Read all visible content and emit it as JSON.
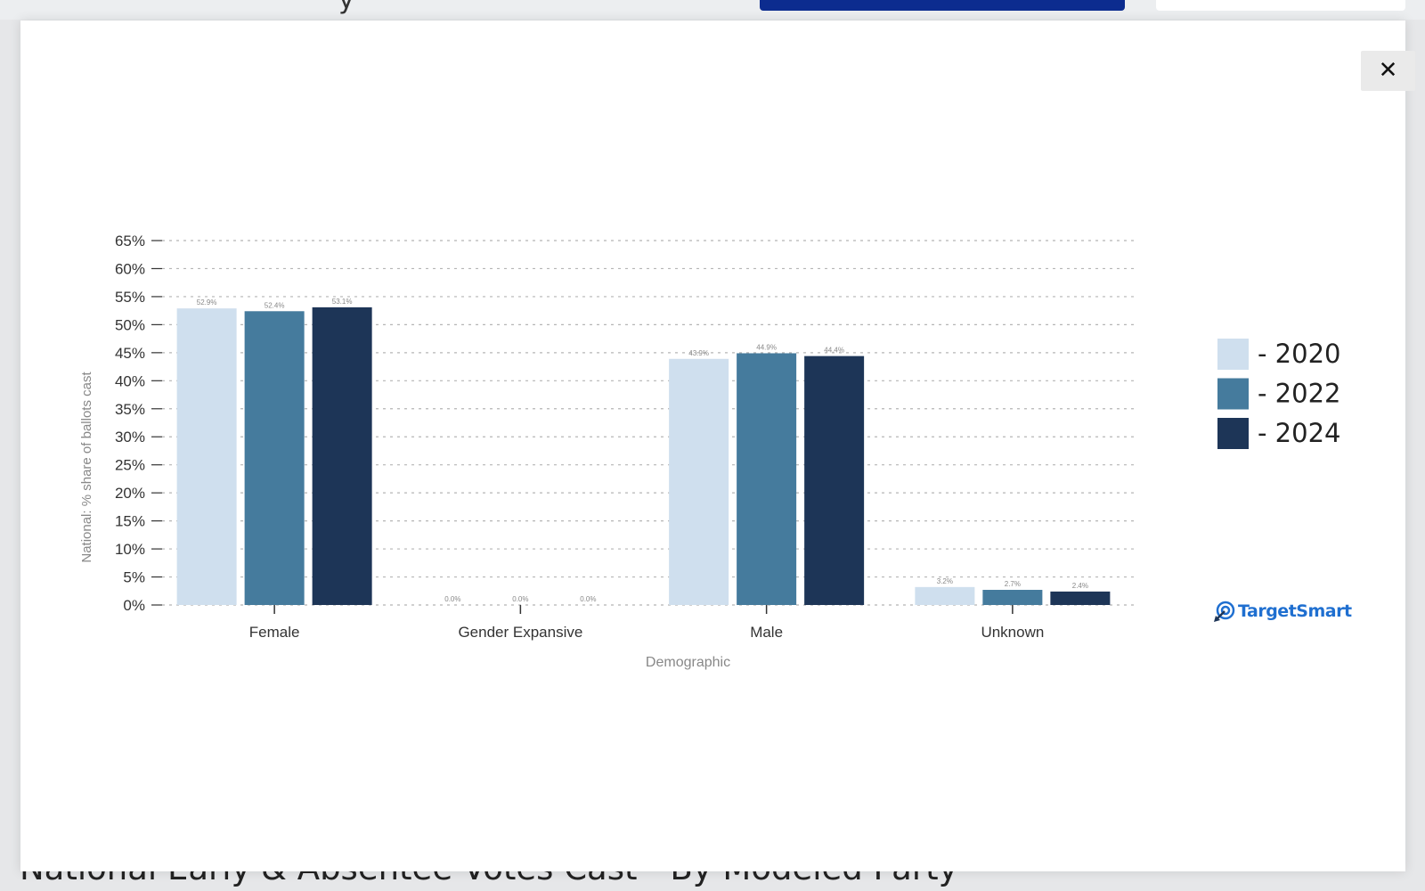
{
  "background": {
    "top_title_fragment": "y",
    "heading": "National Early & Absentee Votes Cast - By Modeled Party"
  },
  "modal": {
    "close_label": "✕",
    "close_icon": "close-icon"
  },
  "brand": {
    "name": "TargetSmart",
    "icon": "target-arrow-icon",
    "color": "#1f6fd0"
  },
  "chart_data": {
    "type": "bar",
    "title": "",
    "xlabel": "Demographic",
    "ylabel": "National: % share of ballots cast",
    "categories": [
      "Female",
      "Gender Expansive",
      "Male",
      "Unknown"
    ],
    "ylim": [
      0,
      65
    ],
    "yticks": [
      0,
      5,
      10,
      15,
      20,
      25,
      30,
      35,
      40,
      45,
      50,
      55,
      60,
      65
    ],
    "ytick_labels": [
      "0%",
      "5%",
      "10%",
      "15%",
      "20%",
      "25%",
      "30%",
      "35%",
      "40%",
      "45%",
      "50%",
      "55%",
      "60%",
      "65%"
    ],
    "grid": true,
    "legend_position": "right",
    "series": [
      {
        "name": "2020",
        "legend_label": "- 2020",
        "color": "#cfdfee",
        "values": [
          52.9,
          0.0,
          43.9,
          3.2
        ],
        "labels": [
          "52.9%",
          "0.0%",
          "43.9%",
          "3.2%"
        ]
      },
      {
        "name": "2022",
        "legend_label": "- 2022",
        "color": "#457b9d",
        "values": [
          52.4,
          0.0,
          44.9,
          2.7
        ],
        "labels": [
          "52.4%",
          "0.0%",
          "44.9%",
          "2.7%"
        ]
      },
      {
        "name": "2024",
        "legend_label": "- 2024",
        "color": "#1d3557",
        "values": [
          53.1,
          0.0,
          44.4,
          2.4
        ],
        "labels": [
          "53.1%",
          "0.0%",
          "44.4%",
          "2.4%"
        ]
      }
    ]
  }
}
